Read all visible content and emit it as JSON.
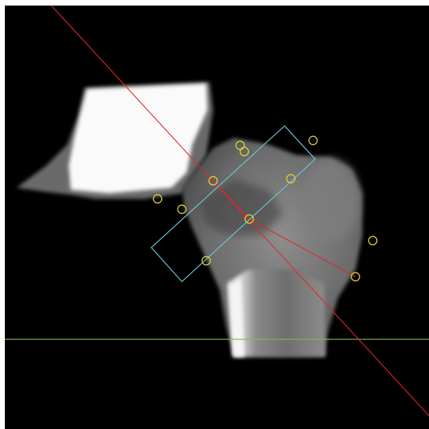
{
  "image": {
    "subject": "",
    "background_color": "#000000",
    "frame_color": "#ffffff"
  },
  "overlay": {
    "axis_line_color": "#e0262a",
    "roi_box_color": "#6fc3d4",
    "marker_color": "#e3d42c",
    "baseline_color": "#86b84c"
  }
}
